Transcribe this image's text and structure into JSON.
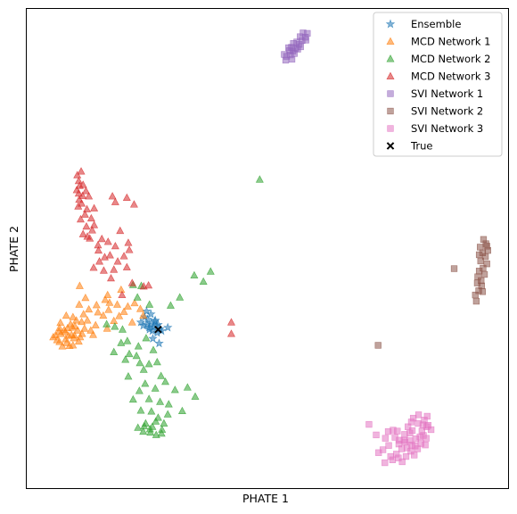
{
  "chart_data": {
    "type": "scatter",
    "title": "",
    "xlabel": "PHATE 1",
    "ylabel": "PHATE 2",
    "xlim": [
      0,
      100
    ],
    "ylim": [
      0,
      100
    ],
    "grid": false,
    "ticks": false,
    "legend_position": "top-right",
    "series": [
      {
        "name": "Ensemble",
        "marker": "star",
        "color": "#1f77b4",
        "points": [
          [
            24.5,
            35.7
          ],
          [
            25.8,
            34.4
          ],
          [
            25.1,
            35.2
          ],
          [
            26.6,
            34.8
          ],
          [
            25.4,
            33.5
          ],
          [
            26.9,
            33.9
          ],
          [
            26.1,
            32.8
          ],
          [
            27.7,
            33.2
          ],
          [
            23.7,
            34.6
          ],
          [
            24.9,
            36.9
          ],
          [
            27.3,
            34.1
          ],
          [
            28.0,
            32.8
          ],
          [
            27.5,
            30.2
          ],
          [
            26.2,
            31.2
          ],
          [
            29.3,
            33.5
          ],
          [
            25.5,
            33.1
          ],
          [
            26.7,
            35.0
          ],
          [
            24.2,
            33.9
          ],
          [
            25.8,
            36.3
          ],
          [
            27.1,
            32.4
          ],
          [
            25.0,
            34.1
          ],
          [
            26.4,
            33.6
          ]
        ]
      },
      {
        "name": "MCD Network 1",
        "marker": "triangle-up",
        "color": "#ff7f0e",
        "points": [
          [
            5.5,
            31.5
          ],
          [
            6.3,
            30.9
          ],
          [
            7.4,
            29.6
          ],
          [
            8.1,
            31.1
          ],
          [
            8.9,
            29.7
          ],
          [
            7.1,
            32.2
          ],
          [
            9.3,
            32.0
          ],
          [
            10.6,
            32.9
          ],
          [
            11.1,
            31.5
          ],
          [
            8.5,
            33.4
          ],
          [
            9.8,
            31.3
          ],
          [
            6.8,
            30.5
          ],
          [
            7.8,
            33.0
          ],
          [
            10.0,
            33.8
          ],
          [
            8.3,
            30.3
          ],
          [
            9.1,
            34.2
          ],
          [
            11.4,
            34.7
          ],
          [
            6.0,
            31.9
          ],
          [
            12.6,
            35.0
          ],
          [
            15.9,
            36.0
          ],
          [
            18.1,
            34.9
          ],
          [
            17.0,
            37.2
          ],
          [
            14.5,
            38.2
          ],
          [
            16.3,
            39.3
          ],
          [
            19.2,
            35.9
          ],
          [
            21.0,
            37.9
          ],
          [
            22.4,
            38.6
          ],
          [
            24.2,
            36.0
          ],
          [
            23.6,
            37.4
          ],
          [
            21.9,
            34.6
          ],
          [
            14.3,
            34.0
          ],
          [
            12.9,
            37.3
          ],
          [
            10.9,
            38.3
          ],
          [
            8.2,
            36.0
          ],
          [
            6.7,
            32.7
          ],
          [
            9.6,
            35.7
          ],
          [
            13.3,
            32.9
          ],
          [
            18.8,
            38.3
          ],
          [
            20.2,
            36.8
          ],
          [
            16.7,
            33.3
          ],
          [
            7.0,
            34.5
          ],
          [
            11.8,
            36.3
          ],
          [
            10.3,
            35.0
          ],
          [
            9.9,
            31.9
          ],
          [
            8.0,
            32.6
          ],
          [
            6.8,
            33.4
          ],
          [
            10.8,
            30.6
          ],
          [
            12.0,
            33.3
          ],
          [
            14.8,
            36.7
          ],
          [
            16.8,
            40.3
          ],
          [
            12.2,
            39.7
          ],
          [
            9.6,
            29.8
          ],
          [
            8.7,
            31.8
          ],
          [
            11.5,
            32.2
          ],
          [
            17.2,
            38.7
          ],
          [
            19.6,
            41.4
          ],
          [
            11.0,
            42.2
          ],
          [
            13.8,
            32.0
          ],
          [
            9.5,
            33.5
          ]
        ]
      },
      {
        "name": "MCD Network 2",
        "marker": "triangle-up",
        "color": "#2ca02c",
        "points": [
          [
            48.4,
            64.4
          ],
          [
            34.8,
            44.4
          ],
          [
            38.2,
            45.2
          ],
          [
            36.7,
            43.1
          ],
          [
            31.8,
            39.8
          ],
          [
            29.9,
            38.1
          ],
          [
            25.5,
            38.3
          ],
          [
            22.1,
            42.4
          ],
          [
            23.8,
            42.2
          ],
          [
            23.0,
            39.8
          ],
          [
            16.6,
            34.2
          ],
          [
            18.3,
            33.7
          ],
          [
            19.9,
            33.1
          ],
          [
            19.6,
            30.3
          ],
          [
            18.1,
            28.4
          ],
          [
            20.9,
            30.7
          ],
          [
            23.2,
            29.6
          ],
          [
            24.8,
            31.3
          ],
          [
            27.1,
            26.3
          ],
          [
            27.9,
            23.4
          ],
          [
            24.3,
            24.7
          ],
          [
            23.5,
            26.1
          ],
          [
            22.8,
            27.6
          ],
          [
            21.3,
            28.0
          ],
          [
            26.3,
            28.8
          ],
          [
            25.4,
            25.9
          ],
          [
            21.1,
            23.3
          ],
          [
            20.5,
            26.8
          ],
          [
            24.6,
            21.8
          ],
          [
            26.7,
            20.8
          ],
          [
            23.4,
            20.3
          ],
          [
            25.4,
            18.6
          ],
          [
            22.1,
            18.5
          ],
          [
            28.8,
            22.2
          ],
          [
            30.8,
            20.5
          ],
          [
            27.7,
            18.0
          ],
          [
            29.5,
            17.5
          ],
          [
            23.7,
            16.2
          ],
          [
            25.9,
            16.0
          ],
          [
            27.3,
            14.7
          ],
          [
            24.7,
            13.5
          ],
          [
            26.1,
            12.8
          ],
          [
            28.1,
            12.2
          ],
          [
            25.7,
            11.6
          ],
          [
            26.9,
            11.1
          ],
          [
            24.2,
            11.8
          ],
          [
            28.5,
            13.5
          ],
          [
            23.1,
            12.6
          ],
          [
            29.3,
            15.4
          ],
          [
            32.3,
            16.1
          ],
          [
            35.0,
            19.1
          ],
          [
            33.4,
            21.0
          ],
          [
            26.8,
            13.9
          ],
          [
            25.6,
            12.3
          ],
          [
            28.0,
            11.4
          ],
          [
            24.4,
            12.9
          ]
        ]
      },
      {
        "name": "MCD Network 3",
        "marker": "triangle-up",
        "color": "#d62728",
        "points": [
          [
            10.5,
            65.3
          ],
          [
            11.3,
            66.1
          ],
          [
            10.8,
            64.1
          ],
          [
            11.7,
            63.3
          ],
          [
            10.4,
            62.2
          ],
          [
            11.6,
            61.0
          ],
          [
            12.3,
            62.0
          ],
          [
            10.9,
            60.2
          ],
          [
            12.9,
            60.9
          ],
          [
            11.4,
            59.4
          ],
          [
            12.5,
            58.2
          ],
          [
            10.7,
            58.8
          ],
          [
            12.1,
            57.1
          ],
          [
            13.4,
            56.3
          ],
          [
            11.2,
            56.1
          ],
          [
            12.4,
            54.6
          ],
          [
            13.6,
            53.8
          ],
          [
            11.7,
            53.0
          ],
          [
            14.0,
            54.9
          ],
          [
            13.1,
            52.1
          ],
          [
            12.6,
            52.5
          ],
          [
            14.8,
            50.7
          ],
          [
            15.6,
            52.0
          ],
          [
            16.9,
            51.4
          ],
          [
            18.4,
            50.5
          ],
          [
            17.3,
            48.6
          ],
          [
            14.9,
            49.6
          ],
          [
            16.2,
            48.2
          ],
          [
            18.9,
            47.3
          ],
          [
            20.2,
            48.4
          ],
          [
            21.1,
            51.2
          ],
          [
            19.4,
            53.7
          ],
          [
            21.3,
            49.7
          ],
          [
            18.1,
            45.6
          ],
          [
            16.0,
            45.4
          ],
          [
            15.1,
            47.3
          ],
          [
            20.8,
            46.1
          ],
          [
            13.9,
            46.0
          ],
          [
            17.5,
            43.8
          ],
          [
            19.8,
            40.3
          ],
          [
            24.3,
            42.1
          ],
          [
            21.9,
            42.8
          ],
          [
            25.3,
            42.3
          ],
          [
            42.5,
            34.6
          ],
          [
            42.5,
            32.2
          ],
          [
            11.0,
            63.1
          ],
          [
            10.8,
            61.5
          ],
          [
            17.8,
            60.9
          ],
          [
            20.8,
            60.6
          ],
          [
            18.4,
            59.7
          ],
          [
            22.3,
            59.2
          ],
          [
            14.0,
            58.4
          ]
        ]
      },
      {
        "name": "SVI Network 1",
        "marker": "square",
        "color": "#9467bd",
        "points": [
          [
            54.0,
            90.1
          ],
          [
            54.8,
            90.4
          ],
          [
            55.3,
            91.2
          ],
          [
            55.9,
            91.8
          ],
          [
            56.6,
            92.6
          ],
          [
            57.2,
            93.4
          ],
          [
            57.9,
            94.1
          ],
          [
            58.3,
            94.9
          ],
          [
            53.5,
            90.5
          ],
          [
            54.6,
            91.3
          ],
          [
            55.0,
            92.0
          ],
          [
            56.1,
            93.1
          ],
          [
            56.8,
            94.2
          ],
          [
            57.4,
            95.0
          ],
          [
            55.6,
            90.7
          ],
          [
            56.3,
            91.6
          ],
          [
            53.8,
            89.3
          ],
          [
            55.1,
            89.5
          ],
          [
            56.9,
            92.1
          ],
          [
            58.0,
            93.5
          ],
          [
            54.4,
            91.9
          ],
          [
            55.4,
            92.8
          ]
        ]
      },
      {
        "name": "SVI Network 2",
        "marker": "square",
        "color": "#8c564b",
        "points": [
          [
            94.0,
            45.3
          ],
          [
            94.8,
            45.9
          ],
          [
            95.6,
            46.8
          ],
          [
            94.3,
            47.4
          ],
          [
            95.3,
            48.3
          ],
          [
            94.7,
            49.1
          ],
          [
            95.8,
            49.6
          ],
          [
            94.2,
            50.3
          ],
          [
            95.4,
            51.0
          ],
          [
            94.9,
            51.9
          ],
          [
            93.7,
            44.1
          ],
          [
            94.4,
            43.3
          ],
          [
            93.9,
            41.2
          ],
          [
            94.5,
            42.2
          ],
          [
            95.1,
            44.6
          ],
          [
            93.4,
            39.0
          ],
          [
            88.8,
            45.8
          ],
          [
            73.0,
            29.8
          ],
          [
            95.6,
            50.5
          ],
          [
            94.0,
            48.7
          ],
          [
            93.6,
            42.8
          ],
          [
            94.7,
            41.0
          ],
          [
            93.2,
            40.3
          ]
        ]
      },
      {
        "name": "SVI Network 3",
        "marker": "square",
        "color": "#e377c2",
        "points": [
          [
            71.1,
            13.3
          ],
          [
            72.6,
            11.1
          ],
          [
            73.1,
            7.4
          ],
          [
            74.5,
            10.4
          ],
          [
            76.1,
            12.1
          ],
          [
            75.2,
            8.9
          ],
          [
            77.4,
            10.0
          ],
          [
            78.5,
            11.2
          ],
          [
            79.6,
            9.9
          ],
          [
            80.1,
            12.0
          ],
          [
            81.3,
            13.5
          ],
          [
            82.4,
            11.0
          ],
          [
            83.1,
            12.8
          ],
          [
            81.4,
            15.3
          ],
          [
            82.6,
            14.2
          ],
          [
            80.3,
            14.6
          ],
          [
            83.2,
            15.0
          ],
          [
            82.3,
            13.2
          ],
          [
            76.8,
            7.1
          ],
          [
            77.9,
            8.2
          ],
          [
            78.8,
            6.6
          ],
          [
            79.8,
            7.7
          ],
          [
            80.7,
            8.8
          ],
          [
            76.0,
            5.9
          ],
          [
            78.0,
            5.5
          ],
          [
            77.3,
            9.2
          ],
          [
            78.4,
            10.0
          ],
          [
            79.6,
            11.5
          ],
          [
            80.8,
            10.3
          ],
          [
            81.9,
            9.3
          ],
          [
            83.0,
            10.4
          ],
          [
            75.6,
            6.6
          ],
          [
            74.4,
            5.3
          ],
          [
            79.0,
            8.4
          ],
          [
            80.0,
            9.0
          ],
          [
            81.2,
            8.2
          ],
          [
            82.1,
            11.9
          ],
          [
            79.2,
            12.8
          ],
          [
            76.5,
            10.6
          ],
          [
            75.1,
            11.8
          ],
          [
            77.0,
            11.9
          ],
          [
            78.6,
            9.6
          ],
          [
            81.7,
            10.7
          ],
          [
            84.0,
            12.2
          ],
          [
            74.0,
            8.0
          ],
          [
            77.2,
            6.3
          ],
          [
            80.5,
            6.9
          ],
          [
            82.8,
            9.0
          ],
          [
            79.9,
            13.8
          ],
          [
            83.4,
            13.1
          ]
        ]
      },
      {
        "name": "True",
        "marker": "x",
        "color": "#000000",
        "points": [
          [
            27.3,
            33.1
          ]
        ]
      }
    ]
  }
}
